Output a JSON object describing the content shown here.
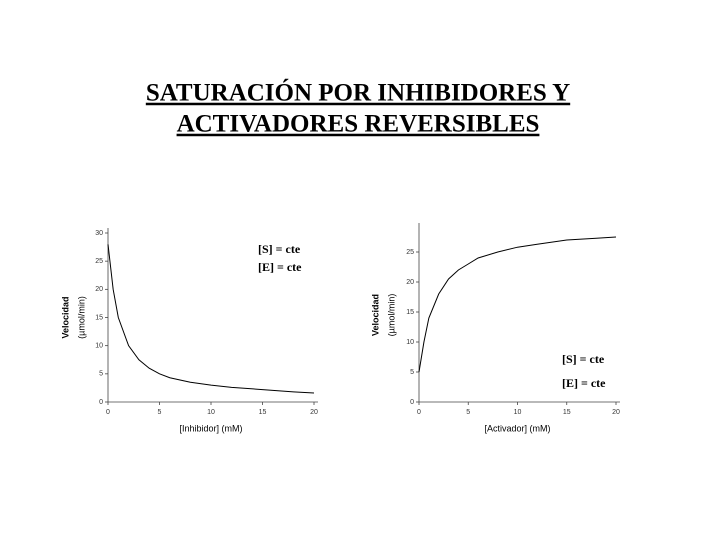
{
  "title": [
    "SATURACIÓN POR INHIBIDORES Y",
    "ACTIVADORES REVERSIBLES"
  ],
  "chart_data": [
    {
      "type": "line",
      "x": [
        0,
        0.5,
        1,
        2,
        3,
        4,
        5,
        6,
        8,
        10,
        12,
        15,
        18,
        20
      ],
      "values": [
        28,
        20,
        15,
        10,
        7.5,
        6,
        5,
        4.3,
        3.5,
        3,
        2.6,
        2.2,
        1.8,
        1.6
      ],
      "color": "#000000",
      "xlim": [
        0,
        20
      ],
      "ylim": [
        0,
        30
      ],
      "xticks": [
        0,
        5,
        10,
        15,
        20
      ],
      "yticks": [
        0,
        5,
        10,
        15,
        20,
        25,
        30
      ],
      "xlabel": "[Inhibidor] (mM)",
      "ylabel": [
        "Velocidad",
        "(µmol/min)"
      ],
      "annotations": [
        "[S] = cte",
        "[E] = cte"
      ]
    },
    {
      "type": "line",
      "x": [
        0,
        0.5,
        1,
        2,
        3,
        4,
        5,
        6,
        8,
        10,
        12,
        15,
        18,
        20
      ],
      "values": [
        5,
        10,
        14,
        18,
        20.5,
        22,
        23,
        24,
        25,
        25.8,
        26.3,
        27,
        27.3,
        27.5
      ],
      "color": "#000000",
      "xlim": [
        0,
        20
      ],
      "ylim": [
        0,
        29
      ],
      "xticks": [
        0,
        5,
        10,
        15,
        20
      ],
      "yticks": [
        0,
        5,
        10,
        15,
        20,
        25
      ],
      "xlabel": "[Activador] (mM)",
      "ylabel": [
        "Velocidad",
        "(µmol/min)"
      ],
      "annotations": [
        "[S] = cte",
        "[E] = cte"
      ]
    }
  ]
}
